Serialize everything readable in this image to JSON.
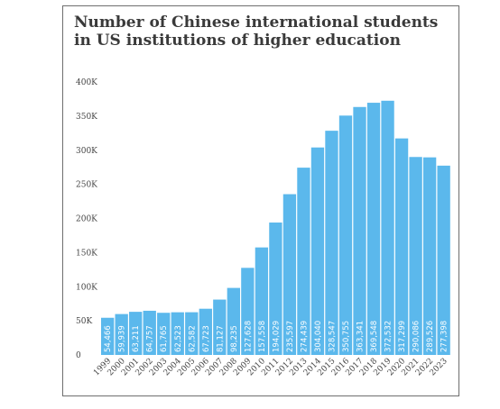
{
  "chart_data": {
    "type": "bar",
    "title": "Number of Chinese international students in US institutions of higher education",
    "xlabel": "",
    "ylabel": "",
    "ylim": [
      0,
      400000
    ],
    "yticks": [
      "0",
      "50K",
      "100K",
      "150K",
      "200K",
      "250K",
      "300K",
      "350K",
      "400K"
    ],
    "grid": false,
    "bar_color": "#5bb8ec",
    "categories": [
      "1999",
      "2000",
      "2001",
      "2002",
      "2003",
      "2004",
      "2005",
      "2006",
      "2007",
      "2008",
      "2009",
      "2010",
      "2011",
      "2012",
      "2013",
      "2014",
      "2015",
      "2016",
      "2017",
      "2018",
      "2019",
      "2020",
      "2021",
      "2022",
      "2023"
    ],
    "values": [
      54466,
      59939,
      63211,
      64757,
      61765,
      62523,
      62582,
      67723,
      81127,
      98235,
      127628,
      157558,
      194029,
      235597,
      274439,
      304040,
      328547,
      350755,
      363341,
      369548,
      372532,
      317299,
      290086,
      289526,
      277398
    ],
    "value_labels": [
      "54,466",
      "59,939",
      "63,211",
      "64,757",
      "61,765",
      "62,523",
      "62,582",
      "67,723",
      "81,127",
      "98,235",
      "127,628",
      "157,558",
      "194,029",
      "235,597",
      "274,439",
      "304,040",
      "328,547",
      "350,755",
      "363,341",
      "369,548",
      "372,532",
      "317,299",
      "290,086",
      "289,526",
      "277,398"
    ]
  }
}
